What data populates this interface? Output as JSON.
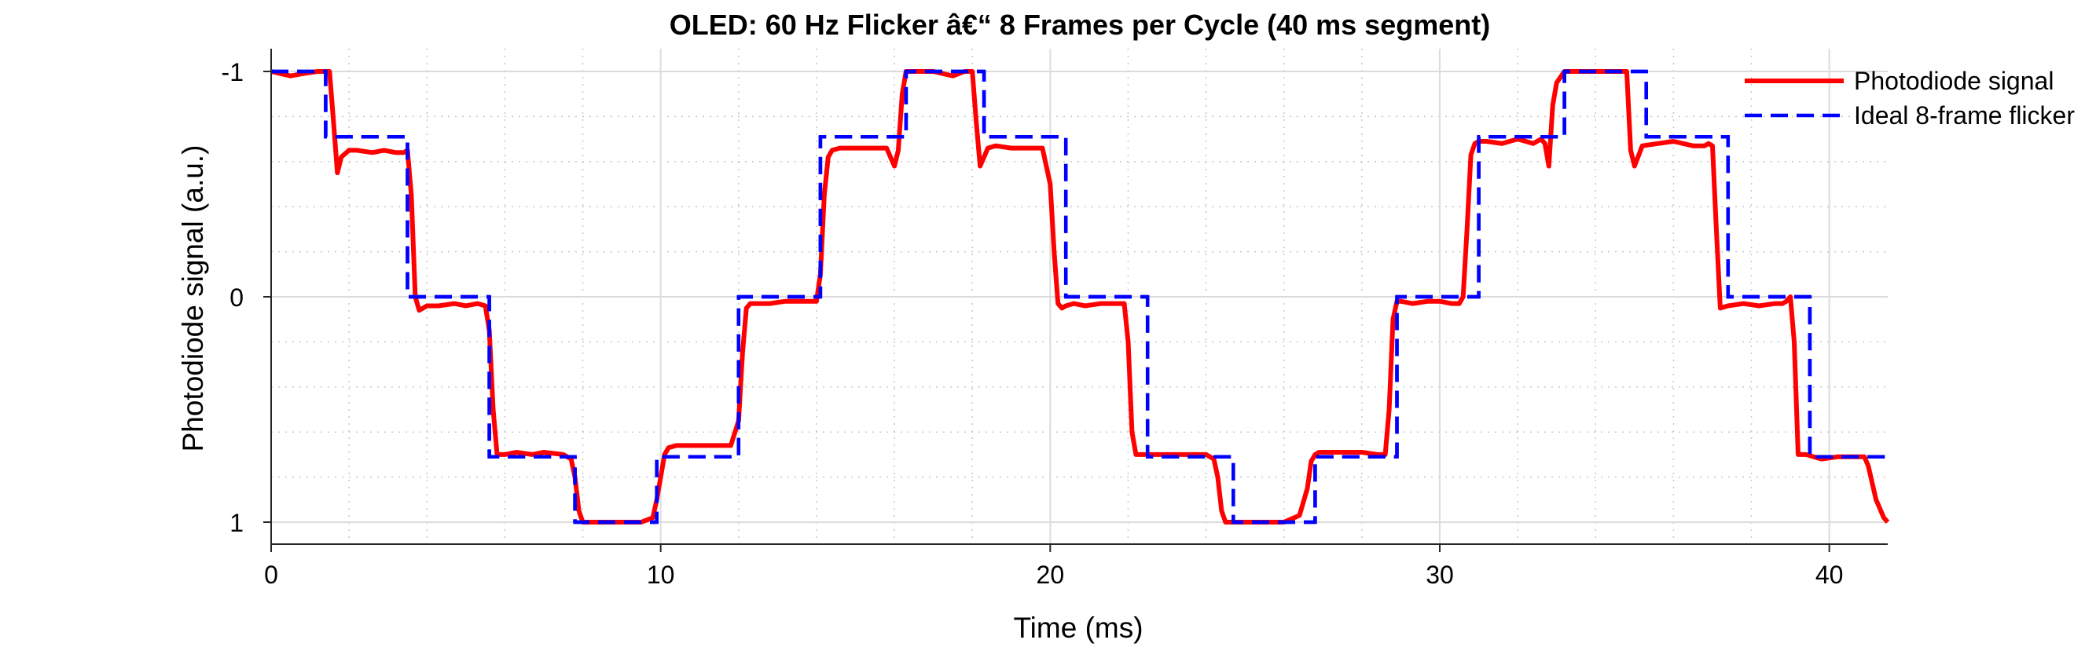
{
  "chart_data": {
    "type": "line",
    "title": "OLED: 60 Hz Flicker â€“ 8 Frames per Cycle (40 ms segment)",
    "xlabel": "Time (ms)",
    "ylabel": "Photodiode signal (a.u.)",
    "xlim": [
      0,
      41.5
    ],
    "ylim": [
      1.1,
      -1.1
    ],
    "y_reversed": true,
    "x_ticks": [
      0,
      10,
      20,
      30,
      40
    ],
    "x_tick_labels": [
      "0",
      "10",
      "20",
      "30",
      "40"
    ],
    "y_ticks": [
      -1,
      0,
      1
    ],
    "y_tick_labels": [
      "-1",
      "0",
      "1"
    ],
    "grid": "major solid + minor dotted",
    "legend_position": "top-right",
    "series": [
      {
        "name": "Photodiode signal",
        "color": "#ff0000",
        "style": "solid",
        "x": [
          0,
          0.5,
          0.8,
          1.2,
          1.4,
          1.5,
          1.6,
          1.7,
          1.8,
          2.0,
          2.2,
          2.6,
          2.9,
          3.2,
          3.4,
          3.5,
          3.6,
          3.7,
          3.8,
          4.0,
          4.3,
          4.7,
          5.0,
          5.3,
          5.5,
          5.6,
          5.7,
          5.8,
          6.0,
          6.3,
          6.7,
          7.0,
          7.5,
          7.7,
          7.8,
          7.9,
          8.0,
          8.2,
          8.6,
          9.0,
          9.5,
          9.8,
          9.9,
          10.0,
          10.1,
          10.2,
          10.4,
          10.8,
          11.2,
          11.8,
          12.0,
          12.1,
          12.2,
          12.3,
          12.5,
          12.8,
          13.2,
          13.6,
          14.0,
          14.1,
          14.2,
          14.3,
          14.4,
          14.6,
          15.0,
          15.4,
          15.8,
          16.0,
          16.1,
          16.2,
          16.3,
          16.4,
          16.6,
          17.0,
          17.5,
          17.8,
          18.0,
          18.1,
          18.2,
          18.3,
          18.4,
          18.6,
          19.0,
          19.4,
          19.8,
          20.0,
          20.1,
          20.2,
          20.3,
          20.4,
          20.6,
          20.9,
          21.3,
          21.7,
          21.9,
          22.0,
          22.1,
          22.2,
          22.3,
          22.5,
          22.9,
          23.3,
          23.7,
          24.0,
          24.2,
          24.3,
          24.4,
          24.5,
          24.6,
          24.8,
          25.2,
          25.6,
          26.0,
          26.4,
          26.6,
          26.7,
          26.8,
          26.9,
          27.1,
          27.5,
          28.0,
          28.4,
          28.6,
          28.7,
          28.8,
          28.9,
          29.0,
          29.3,
          29.7,
          30.0,
          30.3,
          30.5,
          30.6,
          30.7,
          30.8,
          30.9,
          31.0,
          31.2,
          31.6,
          32.0,
          32.4,
          32.6,
          32.7,
          32.8,
          32.9,
          33.0,
          33.2,
          33.6,
          34.0,
          34.4,
          34.6,
          34.7,
          34.8,
          34.9,
          35.0,
          35.2,
          35.6,
          36.0,
          36.5,
          36.8,
          36.9,
          37.0,
          37.1,
          37.2,
          37.4,
          37.8,
          38.2,
          38.6,
          38.8,
          38.9,
          39.0,
          39.1,
          39.2,
          39.4,
          39.8,
          40.2,
          40.5,
          40.7,
          40.8,
          40.9,
          41.0,
          41.2,
          41.4,
          41.5
        ],
        "y": [
          -1.0,
          -0.98,
          -0.99,
          -1.0,
          -1.0,
          -1.0,
          -0.78,
          -0.55,
          -0.62,
          -0.65,
          -0.65,
          -0.64,
          -0.65,
          -0.64,
          -0.64,
          -0.65,
          -0.45,
          0.0,
          0.06,
          0.04,
          0.04,
          0.03,
          0.04,
          0.03,
          0.04,
          0.15,
          0.5,
          0.7,
          0.7,
          0.69,
          0.7,
          0.69,
          0.7,
          0.72,
          0.8,
          0.95,
          1.0,
          1.0,
          1.0,
          1.0,
          1.0,
          0.98,
          0.9,
          0.8,
          0.7,
          0.67,
          0.66,
          0.66,
          0.66,
          0.66,
          0.55,
          0.25,
          0.05,
          0.03,
          0.03,
          0.03,
          0.02,
          0.02,
          0.02,
          -0.1,
          -0.45,
          -0.62,
          -0.65,
          -0.66,
          -0.66,
          -0.66,
          -0.66,
          -0.58,
          -0.65,
          -0.9,
          -1.0,
          -1.0,
          -1.0,
          -1.0,
          -0.98,
          -1.0,
          -1.0,
          -0.78,
          -0.58,
          -0.62,
          -0.66,
          -0.67,
          -0.66,
          -0.66,
          -0.66,
          -0.5,
          -0.2,
          0.03,
          0.05,
          0.04,
          0.03,
          0.04,
          0.03,
          0.03,
          0.03,
          0.2,
          0.6,
          0.7,
          0.7,
          0.7,
          0.7,
          0.7,
          0.7,
          0.7,
          0.72,
          0.8,
          0.95,
          1.0,
          1.0,
          1.0,
          1.0,
          1.0,
          1.0,
          0.97,
          0.85,
          0.73,
          0.7,
          0.69,
          0.69,
          0.69,
          0.69,
          0.7,
          0.7,
          0.5,
          0.1,
          0.02,
          0.02,
          0.03,
          0.02,
          0.02,
          0.03,
          0.03,
          0.0,
          -0.3,
          -0.63,
          -0.68,
          -0.69,
          -0.69,
          -0.68,
          -0.7,
          -0.68,
          -0.7,
          -0.68,
          -0.58,
          -0.85,
          -0.95,
          -1.0,
          -1.0,
          -1.0,
          -1.0,
          -1.0,
          -1.0,
          -1.0,
          -0.65,
          -0.58,
          -0.67,
          -0.68,
          -0.69,
          -0.67,
          -0.67,
          -0.68,
          -0.67,
          -0.3,
          0.05,
          0.04,
          0.03,
          0.04,
          0.03,
          0.03,
          0.02,
          0.0,
          0.2,
          0.7,
          0.7,
          0.72,
          0.71,
          0.71,
          0.71,
          0.71,
          0.71,
          0.75,
          0.9,
          0.98,
          1.0
        ]
      },
      {
        "name": "Ideal 8-frame flicker",
        "color": "#0000ff",
        "style": "dashed",
        "x": [
          0,
          1.4,
          1.4,
          3.5,
          3.5,
          5.6,
          5.6,
          7.8,
          7.8,
          9.9,
          9.9,
          12.0,
          12.0,
          14.1,
          14.1,
          16.3,
          16.3,
          18.3,
          18.3,
          20.4,
          20.4,
          22.5,
          22.5,
          24.7,
          24.7,
          26.8,
          26.8,
          28.9,
          28.9,
          31.0,
          31.0,
          33.2,
          33.2,
          35.3,
          35.3,
          37.4,
          37.4,
          39.5,
          39.5,
          41.5
        ],
        "y": [
          -1,
          -1,
          -0.71,
          -0.71,
          0,
          0,
          0.71,
          0.71,
          1,
          1,
          0.71,
          0.71,
          0,
          0,
          -0.71,
          -0.71,
          -1,
          -1,
          -0.71,
          -0.71,
          0,
          0,
          0.71,
          0.71,
          1,
          1,
          0.71,
          0.71,
          0,
          0,
          -0.71,
          -0.71,
          -1,
          -1,
          -0.71,
          -0.71,
          0,
          0,
          0.71,
          0.71
        ]
      }
    ]
  }
}
